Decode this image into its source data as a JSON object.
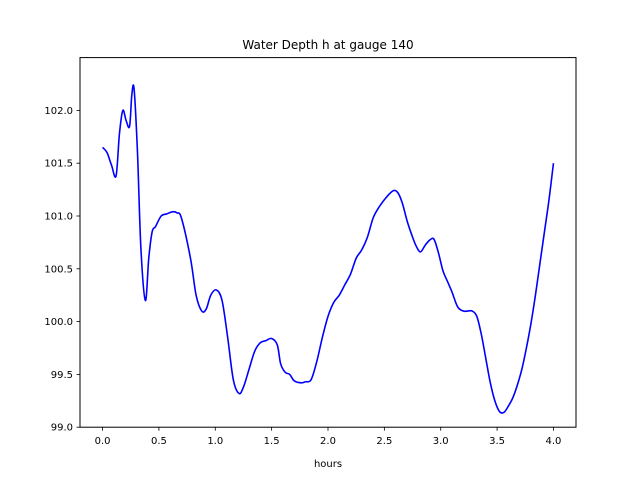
{
  "chart_data": {
    "type": "line",
    "title": "Water Depth h at gauge 140",
    "xlabel": "hours",
    "ylabel": "",
    "xlim": [
      -0.2,
      4.2
    ],
    "ylim": [
      99.0,
      102.5
    ],
    "xticks": [
      0.0,
      0.5,
      1.0,
      1.5,
      2.0,
      2.5,
      3.0,
      3.5,
      4.0
    ],
    "xtick_labels": [
      "0.0",
      "0.5",
      "1.0",
      "1.5",
      "2.0",
      "2.5",
      "3.0",
      "3.5",
      "4.0"
    ],
    "yticks": [
      99.0,
      99.5,
      100.0,
      100.5,
      101.0,
      101.5,
      102.0
    ],
    "ytick_labels": [
      "99.0",
      "99.5",
      "100.0",
      "100.5",
      "101.0",
      "101.5",
      "102.0"
    ],
    "grid": false,
    "series": [
      {
        "color": "#0000ff",
        "x": [
          0.0,
          0.04,
          0.08,
          0.12,
          0.15,
          0.18,
          0.21,
          0.24,
          0.26,
          0.28,
          0.31,
          0.34,
          0.38,
          0.41,
          0.44,
          0.47,
          0.52,
          0.57,
          0.62,
          0.66,
          0.7,
          0.78,
          0.83,
          0.88,
          0.92,
          0.96,
          1.01,
          1.06,
          1.11,
          1.16,
          1.21,
          1.25,
          1.3,
          1.35,
          1.4,
          1.45,
          1.5,
          1.55,
          1.58,
          1.62,
          1.66,
          1.7,
          1.76,
          1.8,
          1.85,
          1.9,
          1.95,
          2.0,
          2.05,
          2.1,
          2.15,
          2.2,
          2.25,
          2.3,
          2.35,
          2.4,
          2.45,
          2.52,
          2.58,
          2.62,
          2.66,
          2.7,
          2.74,
          2.78,
          2.82,
          2.86,
          2.9,
          2.94,
          2.98,
          3.02,
          3.06,
          3.1,
          3.15,
          3.2,
          3.24,
          3.28,
          3.32,
          3.36,
          3.4,
          3.44,
          3.48,
          3.52,
          3.56,
          3.6,
          3.64,
          3.68,
          3.72,
          3.76,
          3.8,
          3.84,
          3.88,
          3.92,
          3.96,
          4.0
        ],
        "values": [
          101.65,
          101.6,
          101.48,
          101.38,
          101.78,
          102.0,
          101.9,
          101.85,
          102.15,
          102.2,
          101.6,
          100.7,
          100.2,
          100.6,
          100.85,
          100.9,
          101.0,
          101.02,
          101.04,
          101.03,
          100.98,
          100.6,
          100.25,
          100.1,
          100.12,
          100.25,
          100.3,
          100.2,
          99.85,
          99.45,
          99.32,
          99.38,
          99.55,
          99.72,
          99.8,
          99.82,
          99.84,
          99.78,
          99.6,
          99.52,
          99.5,
          99.44,
          99.42,
          99.43,
          99.45,
          99.62,
          99.85,
          100.05,
          100.18,
          100.25,
          100.35,
          100.45,
          100.6,
          100.68,
          100.8,
          100.98,
          101.08,
          101.18,
          101.24,
          101.22,
          101.12,
          100.96,
          100.83,
          100.72,
          100.66,
          100.72,
          100.77,
          100.78,
          100.65,
          100.48,
          100.38,
          100.28,
          100.14,
          100.1,
          100.1,
          100.1,
          100.05,
          99.88,
          99.65,
          99.42,
          99.25,
          99.15,
          99.14,
          99.2,
          99.28,
          99.4,
          99.55,
          99.75,
          99.98,
          100.25,
          100.55,
          100.85,
          101.15,
          101.5
        ]
      }
    ]
  }
}
